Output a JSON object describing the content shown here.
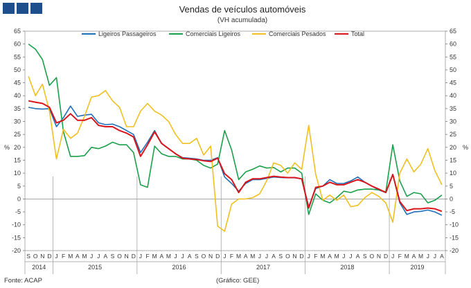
{
  "header": {
    "title": "Vendas de veículos automóveis",
    "subtitle": "(VH acumulada)"
  },
  "footer": {
    "source": "Fonte: ACAP",
    "credit": "(Gráfico: GEE)"
  },
  "colors": {
    "ligeiros": "#1f6fb8",
    "comerciais_ligeiros": "#1aa04a",
    "comerciais_pesados": "#f0c020",
    "total": "#d9151b",
    "brand_blocks": "#1f4e8c"
  },
  "chart_data": {
    "type": "line",
    "title": "Vendas de veículos automóveis",
    "subtitle": "(VH acumulada)",
    "ylabel": "%",
    "ylabel_right": "%",
    "ylim": [
      -20,
      65
    ],
    "yticks": [
      -20,
      -15,
      -10,
      -5,
      0,
      5,
      10,
      15,
      20,
      25,
      30,
      35,
      40,
      45,
      50,
      55,
      60,
      65
    ],
    "months": [
      "S",
      "O",
      "N",
      "D",
      "J",
      "F",
      "M",
      "A",
      "M",
      "J",
      "J",
      "A",
      "S",
      "O",
      "N",
      "D",
      "J",
      "F",
      "M",
      "A",
      "M",
      "J",
      "J",
      "A",
      "S",
      "O",
      "N",
      "D",
      "J",
      "F",
      "M",
      "A",
      "M",
      "J",
      "J",
      "A",
      "S",
      "O",
      "N",
      "D",
      "J",
      "F",
      "M",
      "A",
      "M",
      "J",
      "J",
      "A",
      "S",
      "O",
      "N",
      "D",
      "J",
      "F",
      "M",
      "A",
      "M",
      "J",
      "J",
      "A"
    ],
    "years": [
      {
        "label": "2014",
        "start": 0,
        "count": 4
      },
      {
        "label": "2015",
        "start": 4,
        "count": 12
      },
      {
        "label": "2016",
        "start": 16,
        "count": 12
      },
      {
        "label": "2017",
        "start": 28,
        "count": 12
      },
      {
        "label": "2018",
        "start": 40,
        "count": 12
      },
      {
        "label": "2019",
        "start": 52,
        "count": 8
      }
    ],
    "legend": [
      "Ligeiros Passageiros",
      "Comerciais Ligeiros",
      "Comerciais Pesados",
      "Total"
    ],
    "series": [
      {
        "name": "Ligeiros Passageiros",
        "color": "#1f6fb8",
        "values": [
          35.5,
          35.0,
          34.8,
          35.0,
          28.0,
          31.5,
          36.0,
          32.0,
          32.5,
          32.8,
          29.5,
          28.8,
          29.0,
          28.0,
          26.5,
          25.0,
          18.0,
          22.0,
          26.5,
          21.5,
          19.5,
          17.5,
          16.0,
          15.8,
          15.5,
          15.0,
          15.0,
          16.0,
          8.5,
          6.0,
          3.0,
          6.0,
          7.5,
          7.5,
          8.0,
          8.5,
          8.3,
          8.2,
          8.2,
          7.8,
          -3.0,
          4.0,
          5.0,
          7.5,
          6.0,
          6.0,
          7.0,
          8.5,
          6.5,
          5.0,
          3.5,
          2.5,
          9.5,
          -1.5,
          -6.0,
          -5.0,
          -4.8,
          -4.3,
          -5.0,
          -6.3
        ]
      },
      {
        "name": "Comerciais Ligeiros",
        "color": "#1aa04a",
        "values": [
          60.0,
          58.0,
          54.0,
          44.0,
          47.0,
          26.0,
          16.5,
          16.5,
          16.8,
          20.0,
          19.5,
          20.5,
          22.0,
          21.0,
          21.0,
          18.0,
          5.5,
          4.5,
          20.5,
          17.5,
          16.5,
          16.5,
          15.5,
          15.5,
          15.0,
          13.0,
          12.0,
          13.5,
          26.5,
          19.0,
          7.5,
          10.5,
          11.5,
          12.8,
          12.0,
          12.2,
          10.5,
          12.0,
          12.0,
          10.0,
          -6.0,
          2.0,
          -0.5,
          -1.5,
          0.5,
          3.0,
          2.5,
          3.5,
          3.8,
          3.8,
          3.5,
          2.8,
          21.0,
          7.0,
          1.0,
          2.5,
          2.0,
          -1.5,
          -0.5,
          1.5
        ]
      },
      {
        "name": "Comerciais Pesados",
        "color": "#f0c020",
        "values": [
          47.5,
          40.0,
          44.5,
          34.0,
          15.5,
          27.0,
          23.5,
          25.5,
          32.0,
          39.5,
          40.0,
          42.0,
          38.0,
          35.5,
          28.0,
          28.0,
          34.0,
          37.0,
          34.0,
          32.5,
          30.0,
          25.0,
          21.5,
          21.5,
          23.5,
          17.0,
          20.5,
          -10.5,
          -12.5,
          -2.0,
          0.0,
          0.0,
          0.5,
          2.0,
          7.0,
          14.0,
          13.0,
          10.0,
          14.0,
          11.5,
          28.5,
          9.5,
          -0.5,
          1.5,
          -0.5,
          1.5,
          -3.0,
          -2.5,
          0.5,
          2.5,
          1.0,
          -1.5,
          -9.0,
          10.0,
          15.5,
          10.5,
          13.5,
          19.5,
          11.0,
          5.5
        ]
      },
      {
        "name": "Total",
        "color": "#d9151b",
        "values": [
          38.0,
          37.5,
          37.0,
          35.5,
          29.5,
          30.5,
          33.0,
          30.5,
          30.5,
          31.5,
          28.5,
          28.0,
          28.0,
          26.5,
          25.5,
          24.0,
          16.5,
          21.0,
          26.0,
          21.5,
          19.5,
          17.5,
          15.8,
          15.5,
          15.3,
          14.8,
          14.5,
          15.8,
          9.8,
          7.5,
          2.5,
          6.5,
          7.8,
          7.8,
          8.3,
          8.8,
          8.5,
          8.3,
          8.3,
          7.8,
          -3.5,
          4.5,
          5.0,
          6.5,
          5.5,
          5.5,
          6.5,
          7.5,
          6.5,
          5.0,
          3.8,
          2.5,
          9.5,
          -1.0,
          -4.5,
          -3.8,
          -3.8,
          -3.5,
          -3.8,
          -4.8
        ]
      }
    ]
  }
}
